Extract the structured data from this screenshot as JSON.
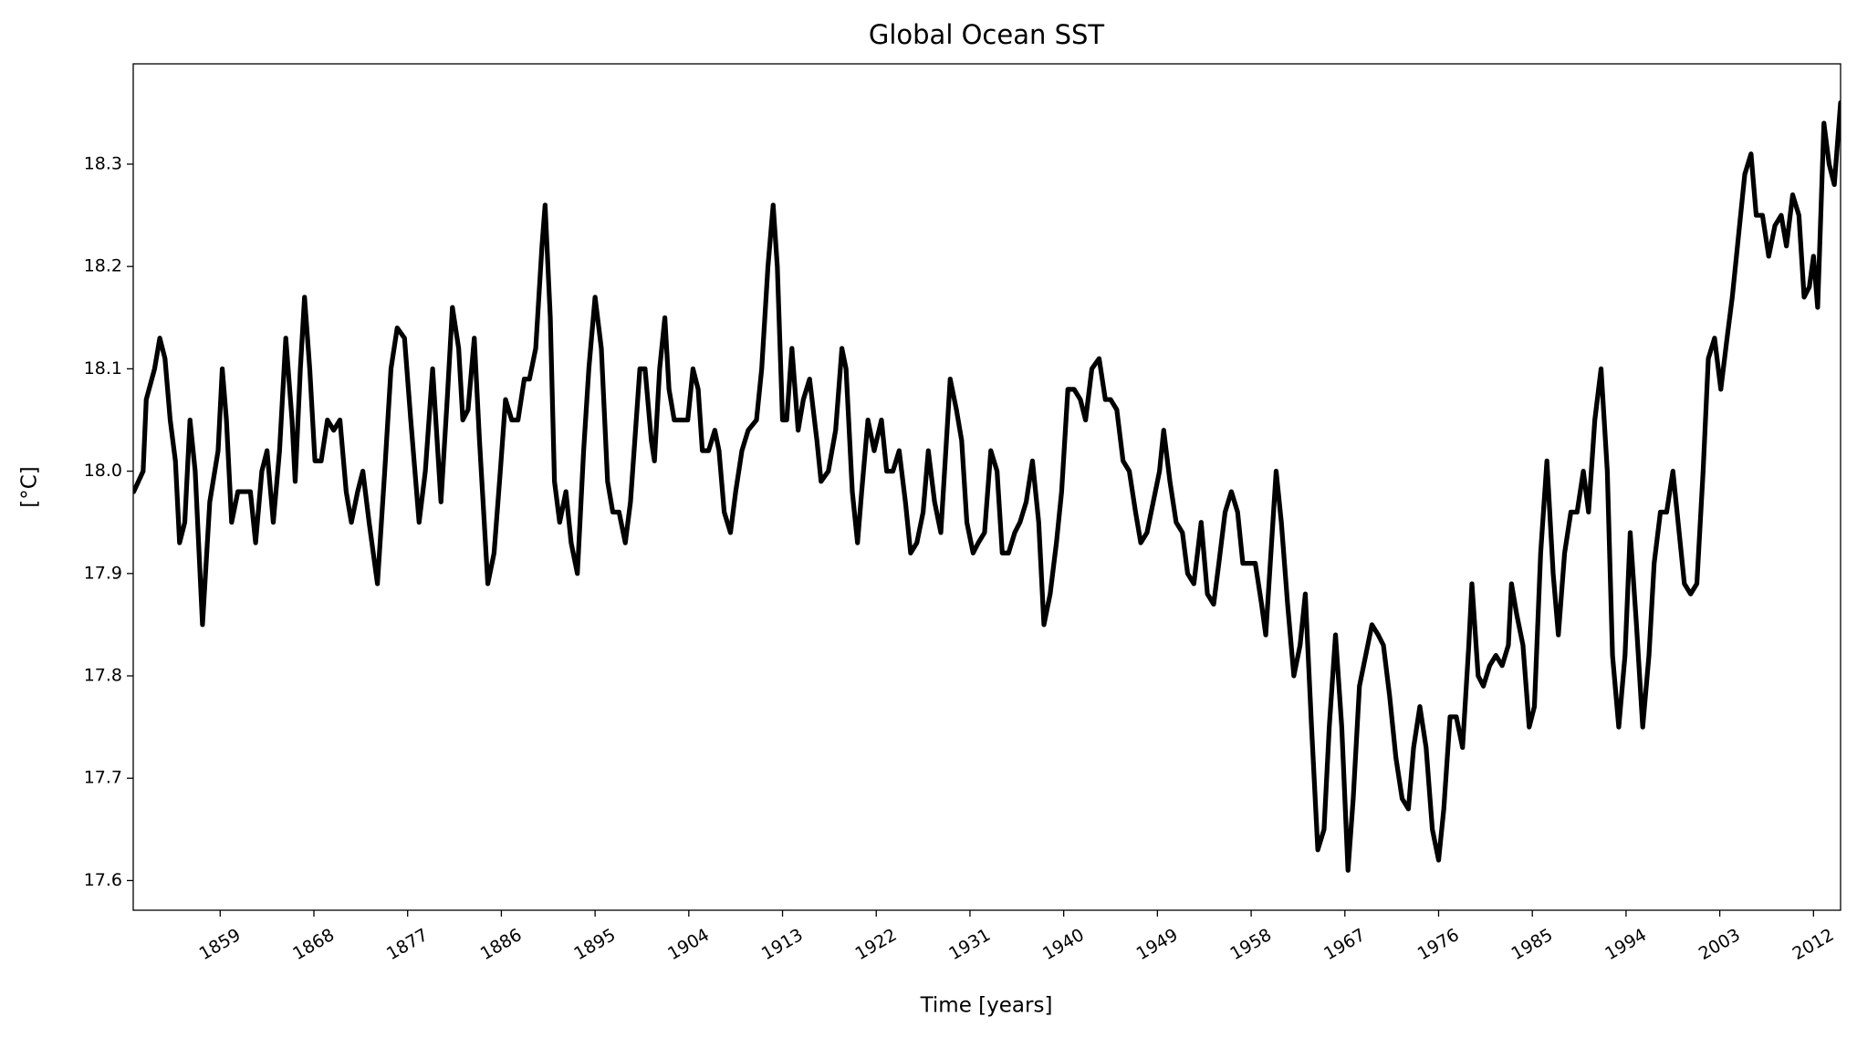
{
  "chart_data": {
    "type": "line",
    "title": "Global Ocean SST",
    "xlabel": "Time [years]",
    "ylabel": "[°C]",
    "x": [
      1850.7,
      1851.6,
      1851.9,
      1852.7,
      1853.2,
      1853.7,
      1854.2,
      1854.7,
      1855.1,
      1855.6,
      1856.1,
      1856.6,
      1857.3,
      1858.0,
      1858.8,
      1859.2,
      1859.6,
      1860.1,
      1860.7,
      1861.3,
      1861.9,
      1862.4,
      1863.0,
      1863.5,
      1864.1,
      1864.7,
      1865.3,
      1865.9,
      1866.2,
      1866.7,
      1867.1,
      1867.6,
      1868.1,
      1868.7,
      1869.3,
      1869.9,
      1870.5,
      1871.1,
      1871.6,
      1872.2,
      1872.7,
      1873.3,
      1874.1,
      1874.8,
      1875.4,
      1876.0,
      1876.7,
      1877.3,
      1878.1,
      1878.7,
      1879.4,
      1880.2,
      1880.8,
      1881.3,
      1881.9,
      1882.3,
      1882.8,
      1883.4,
      1883.9,
      1884.7,
      1885.3,
      1885.9,
      1886.4,
      1887.0,
      1887.6,
      1888.2,
      1888.7,
      1889.3,
      1889.9,
      1890.2,
      1890.7,
      1891.1,
      1891.6,
      1892.2,
      1892.7,
      1893.3,
      1893.9,
      1894.4,
      1895.0,
      1895.6,
      1896.2,
      1896.7,
      1897.3,
      1897.9,
      1898.4,
      1899.3,
      1899.8,
      1900.4,
      1900.7,
      1901.2,
      1901.7,
      1902.1,
      1902.6,
      1903.3,
      1903.9,
      1904.4,
      1904.9,
      1905.3,
      1905.9,
      1906.5,
      1906.9,
      1907.4,
      1908.0,
      1908.5,
      1909.1,
      1909.7,
      1910.5,
      1911.0,
      1911.6,
      1912.1,
      1912.5,
      1913.0,
      1913.4,
      1913.9,
      1914.5,
      1915.0,
      1915.6,
      1916.3,
      1916.7,
      1917.4,
      1918.1,
      1918.7,
      1919.1,
      1919.7,
      1920.2,
      1920.6,
      1921.2,
      1921.8,
      1922.5,
      1923.0,
      1923.6,
      1924.2,
      1924.8,
      1925.3,
      1925.9,
      1926.5,
      1927.0,
      1927.6,
      1928.2,
      1928.8,
      1929.1,
      1929.7,
      1930.2,
      1930.7,
      1931.3,
      1931.8,
      1932.4,
      1933.0,
      1933.6,
      1934.1,
      1934.7,
      1935.3,
      1935.8,
      1936.4,
      1937.0,
      1937.6,
      1938.1,
      1938.7,
      1939.3,
      1939.8,
      1940.4,
      1941.0,
      1941.6,
      1942.1,
      1942.7,
      1943.4,
      1944.0,
      1944.5,
      1945.1,
      1945.7,
      1946.3,
      1946.9,
      1947.4,
      1948.0,
      1948.6,
      1949.2,
      1949.6,
      1950.2,
      1950.8,
      1951.4,
      1951.9,
      1952.5,
      1953.2,
      1953.8,
      1954.4,
      1954.9,
      1955.5,
      1956.1,
      1956.7,
      1957.2,
      1957.8,
      1958.4,
      1959.0,
      1959.4,
      1959.9,
      1960.4,
      1960.9,
      1961.5,
      1962.1,
      1962.7,
      1963.2,
      1963.8,
      1964.4,
      1965.0,
      1965.5,
      1966.1,
      1966.7,
      1967.3,
      1967.8,
      1968.4,
      1969.0,
      1969.6,
      1970.2,
      1970.7,
      1971.3,
      1971.9,
      1972.5,
      1973.1,
      1973.6,
      1974.2,
      1974.8,
      1975.4,
      1976.0,
      1976.5,
      1977.1,
      1977.7,
      1978.3,
      1978.9,
      1979.2,
      1979.8,
      1980.3,
      1980.9,
      1981.5,
      1982.1,
      1982.7,
      1983.0,
      1983.5,
      1984.1,
      1984.7,
      1985.2,
      1985.8,
      1986.4,
      1987.0,
      1987.5,
      1988.1,
      1988.7,
      1989.3,
      1989.9,
      1990.4,
      1991.0,
      1991.6,
      1992.2,
      1992.7,
      1993.3,
      1993.9,
      1994.4,
      1995.0,
      1995.6,
      1996.2,
      1996.7,
      1997.3,
      1997.9,
      1998.5,
      1999.1,
      1999.6,
      2000.2,
      2000.8,
      2001.4,
      2001.9,
      2002.5,
      2003.1,
      2003.7,
      2004.2,
      2004.8,
      2005.4,
      2006.0,
      2006.5,
      2007.1,
      2007.7,
      2008.3,
      2008.9,
      2009.4,
      2010.0,
      2010.6,
      2011.1,
      2011.6,
      2012.0,
      2012.4,
      2013.0,
      2013.5,
      2014.0,
      2014.6
    ],
    "series": [
      {
        "name": "SST",
        "color": "#000000",
        "values": [
          17.98,
          18.0,
          18.07,
          18.1,
          18.13,
          18.11,
          18.05,
          18.01,
          17.93,
          17.95,
          18.05,
          18.0,
          17.85,
          17.97,
          18.02,
          18.1,
          18.05,
          17.95,
          17.98,
          17.98,
          17.98,
          17.93,
          18.0,
          18.02,
          17.95,
          18.02,
          18.13,
          18.05,
          17.99,
          18.1,
          18.17,
          18.1,
          18.01,
          18.01,
          18.05,
          18.04,
          18.05,
          17.98,
          17.95,
          17.98,
          18.0,
          17.95,
          17.89,
          18.0,
          18.1,
          18.14,
          18.13,
          18.05,
          17.95,
          18.0,
          18.1,
          17.97,
          18.07,
          18.16,
          18.12,
          18.05,
          18.06,
          18.13,
          18.03,
          17.89,
          17.92,
          18.0,
          18.07,
          18.05,
          18.05,
          18.09,
          18.09,
          18.12,
          18.22,
          18.26,
          18.15,
          17.99,
          17.95,
          17.98,
          17.93,
          17.9,
          18.02,
          18.1,
          18.17,
          18.12,
          17.99,
          17.96,
          17.96,
          17.93,
          17.97,
          18.1,
          18.1,
          18.03,
          18.01,
          18.1,
          18.15,
          18.08,
          18.05,
          18.05,
          18.05,
          18.1,
          18.08,
          18.02,
          18.02,
          18.04,
          18.02,
          17.96,
          17.94,
          17.98,
          18.02,
          18.04,
          18.05,
          18.1,
          18.2,
          18.26,
          18.2,
          18.05,
          18.05,
          18.12,
          18.04,
          18.07,
          18.09,
          18.03,
          17.99,
          18.0,
          18.04,
          18.12,
          18.1,
          17.98,
          17.93,
          17.98,
          18.05,
          18.02,
          18.05,
          18.0,
          18.0,
          18.02,
          17.97,
          17.92,
          17.93,
          17.96,
          18.02,
          17.97,
          17.94,
          18.04,
          18.09,
          18.06,
          18.03,
          17.95,
          17.92,
          17.93,
          17.94,
          18.02,
          18.0,
          17.92,
          17.92,
          17.94,
          17.95,
          17.97,
          18.01,
          17.95,
          17.85,
          17.88,
          17.93,
          17.98,
          18.08,
          18.08,
          18.07,
          18.05,
          18.1,
          18.11,
          18.07,
          18.07,
          18.06,
          18.01,
          18.0,
          17.96,
          17.93,
          17.94,
          17.97,
          18.0,
          18.04,
          17.99,
          17.95,
          17.94,
          17.9,
          17.89,
          17.95,
          17.88,
          17.87,
          17.91,
          17.96,
          17.98,
          17.96,
          17.91,
          17.91,
          17.91,
          17.87,
          17.84,
          17.92,
          18.0,
          17.95,
          17.87,
          17.8,
          17.83,
          17.88,
          17.75,
          17.63,
          17.65,
          17.75,
          17.84,
          17.75,
          17.61,
          17.68,
          17.79,
          17.82,
          17.85,
          17.84,
          17.83,
          17.78,
          17.72,
          17.68,
          17.67,
          17.73,
          17.77,
          17.73,
          17.65,
          17.62,
          17.67,
          17.76,
          17.76,
          17.73,
          17.83,
          17.89,
          17.8,
          17.79,
          17.81,
          17.82,
          17.81,
          17.83,
          17.89,
          17.86,
          17.83,
          17.75,
          17.77,
          17.92,
          18.01,
          17.9,
          17.84,
          17.92,
          17.96,
          17.96,
          18.0,
          17.96,
          18.05,
          18.1,
          18.0,
          17.82,
          17.75,
          17.82,
          17.94,
          17.85,
          17.75,
          17.82,
          17.91,
          17.96,
          17.96,
          18.0,
          17.94,
          17.89,
          17.88,
          17.89,
          18.0,
          18.11,
          18.13,
          18.08,
          18.13,
          18.17,
          18.23,
          18.29,
          18.31,
          18.25,
          18.25,
          18.21,
          18.24,
          18.25,
          18.22,
          18.27,
          18.25,
          18.17,
          18.18,
          18.21,
          18.16,
          18.34,
          18.3,
          18.28,
          18.36
        ]
      }
    ],
    "xlim": [
      1850.65,
      2014.6
    ],
    "ylim": [
      17.571,
      18.398
    ],
    "xticks": [
      1859,
      1868,
      1877,
      1886,
      1895,
      1904,
      1913,
      1922,
      1931,
      1940,
      1949,
      1958,
      1967,
      1976,
      1985,
      1994,
      2003,
      2012
    ],
    "yticks": [
      17.6,
      17.7,
      17.8,
      17.9,
      {
        "value": 18.0,
        "label": "18.0"
      },
      18.1,
      18.2,
      18.3
    ],
    "grid": false
  }
}
